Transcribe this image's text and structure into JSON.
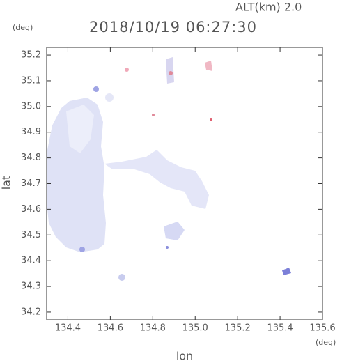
{
  "chart_data": {
    "type": "map",
    "title": "2018/10/19 06:27:30",
    "subtitle": "ALT(km) 2.0",
    "y_unit": "(deg)",
    "x_unit": "(deg)",
    "x_label": "lon",
    "y_label": "lat",
    "xlim": [
      134.3,
      135.6
    ],
    "xticks": [
      134.4,
      134.6,
      134.8,
      {
        "value": 135,
        "label": "135.0"
      },
      135.2,
      135.4,
      135.6
    ],
    "ylim": [
      34.17,
      35.23
    ],
    "yticks": [
      34.2,
      34.3,
      34.4,
      34.5,
      34.6,
      34.7,
      34.8,
      34.9,
      {
        "value": 35,
        "label": "35.0"
      },
      35.1,
      35.2
    ]
  }
}
